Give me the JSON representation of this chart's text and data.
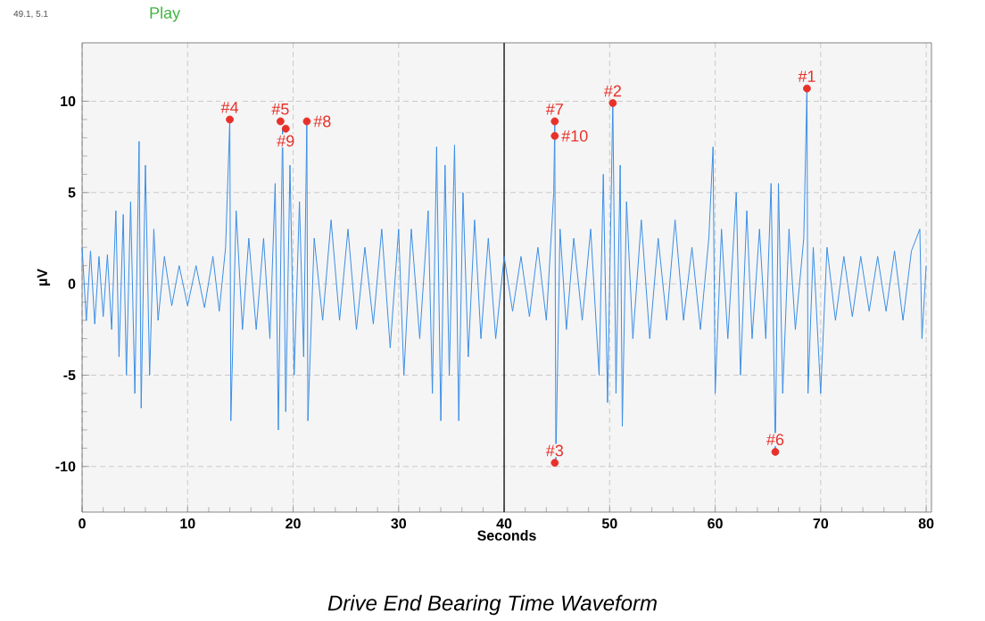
{
  "chart_data": {
    "type": "line",
    "title": "Drive End Bearing Time Waveform",
    "xlabel": "Seconds",
    "ylabel": "µV",
    "xlim": [
      0,
      80.5
    ],
    "ylim": [
      -12.5,
      13.2
    ],
    "xticks": [
      0,
      10,
      20,
      30,
      40,
      50,
      60,
      70,
      80
    ],
    "yticks": [
      -10,
      -5,
      0,
      5,
      10
    ],
    "grid": true,
    "ref_lines": [
      {
        "axis": "x",
        "value": 40,
        "color": "#333333"
      }
    ],
    "annotations": [
      "49.1, 5.1",
      "Play",
      {
        "text": "#1",
        "x": 68.7,
        "y": 10.7
      },
      {
        "text": "#2",
        "x": 50.3,
        "y": 9.9
      },
      {
        "text": "#3",
        "x": 44.8,
        "y": -9.8
      },
      {
        "text": "#4",
        "x": 14.0,
        "y": 9.0
      },
      {
        "text": "#5",
        "x": 18.8,
        "y": 8.9
      },
      {
        "text": "#6",
        "x": 65.7,
        "y": -9.2
      },
      {
        "text": "#7",
        "x": 44.8,
        "y": 8.9
      },
      {
        "text": "#8",
        "x": 21.3,
        "y": 8.9
      },
      {
        "text": "#9",
        "x": 19.3,
        "y": 8.5
      },
      {
        "text": "#10",
        "x": 44.8,
        "y": 8.1
      }
    ],
    "series": [
      {
        "color": "#3a8ee6",
        "marker": "none",
        "line_style": "solid",
        "x": [
          0,
          0.4,
          0.8,
          1.2,
          1.6,
          2,
          2.4,
          2.8,
          3.2,
          3.5,
          3.9,
          4.2,
          4.6,
          5,
          5.4,
          5.6,
          6,
          6.4,
          6.8,
          7.2,
          7.8,
          8.5,
          9.2,
          10,
          10.8,
          11.6,
          12.4,
          13,
          13.6,
          14,
          14.1,
          14.6,
          15.2,
          15.8,
          16.5,
          17.2,
          17.8,
          18.3,
          18.6,
          19,
          19.3,
          19.7,
          20.1,
          20.6,
          21,
          21.3,
          21.4,
          22,
          22.8,
          23.6,
          24.4,
          25.2,
          26,
          26.8,
          27.6,
          28.4,
          29.2,
          30,
          30.5,
          31.2,
          32,
          32.8,
          33.2,
          33.6,
          34,
          34.4,
          34.8,
          35.3,
          35.7,
          36.1,
          36.6,
          37.2,
          37.8,
          38.5,
          39.2,
          40,
          40.8,
          41.6,
          42.4,
          43.2,
          44,
          44.7,
          44.8,
          44.9,
          45.3,
          45.9,
          46.6,
          47.4,
          48.2,
          49,
          49.4,
          49.8,
          50.3,
          50.6,
          51,
          51.2,
          51.6,
          52.2,
          53,
          53.8,
          54.6,
          55.4,
          56.2,
          57,
          57.8,
          58.6,
          59.4,
          59.8,
          60,
          60.6,
          61.2,
          62,
          62.4,
          63,
          63.5,
          64.2,
          64.8,
          65.3,
          65.7,
          66,
          66.4,
          67,
          67.6,
          68.4,
          68.7,
          68.8,
          69.3,
          70,
          70.6,
          71.4,
          72.2,
          73,
          73.8,
          74.6,
          75.4,
          76.2,
          77,
          77.8,
          78.6,
          79.4,
          79.6,
          80
        ],
        "values": [
          2,
          -2,
          1.8,
          -2.2,
          1.5,
          -1.8,
          1.6,
          -2.5,
          4,
          -4,
          3.8,
          -5,
          4.5,
          -6,
          7.8,
          -6.8,
          6.5,
          -5,
          3,
          -2,
          1.5,
          -1.2,
          1,
          -1.2,
          1,
          -1.3,
          1.5,
          -1.5,
          2,
          9,
          -7.5,
          4,
          -2.5,
          2.5,
          -2.5,
          2.5,
          -3,
          5.5,
          -8,
          8.5,
          -7,
          6.5,
          -5,
          4.5,
          -4,
          8.9,
          -7.5,
          2.5,
          -2,
          3.5,
          -2,
          3,
          -2.5,
          2,
          -2.2,
          3,
          -3.5,
          3,
          -5,
          3,
          -3,
          4,
          -6,
          7.5,
          -7.5,
          6.5,
          -5,
          7.6,
          -7.5,
          5,
          -4,
          3.5,
          -3,
          2.5,
          -3,
          1.5,
          -1.5,
          1.5,
          -1.8,
          2,
          -2,
          5,
          8.9,
          -9.8,
          3,
          -2.5,
          2.5,
          -2,
          3,
          -5,
          6,
          -6.5,
          9.9,
          -6,
          6.5,
          -7.8,
          4.5,
          -3,
          3.5,
          -3,
          2.5,
          -2,
          3.5,
          -2,
          2,
          -2.5,
          2.5,
          7.5,
          -6,
          3,
          -3,
          5,
          -5,
          4,
          -3,
          3,
          -3,
          5.5,
          -9.2,
          5.5,
          -6,
          3,
          -2.5,
          2.5,
          10.7,
          -6,
          2,
          -6,
          2,
          -2,
          1.5,
          -1.8,
          1.5,
          -1.5,
          1.5,
          -1.5,
          1.8,
          -2,
          1.8,
          3,
          -3,
          1
        ]
      },
      {
        "type": "scatter",
        "color": "#e8302a",
        "marker": "circle",
        "x": [
          68.7,
          50.3,
          44.8,
          14.0,
          18.8,
          65.7,
          44.8,
          21.3,
          19.3,
          44.8
        ],
        "values": [
          10.7,
          9.9,
          -9.8,
          9.0,
          8.9,
          -9.2,
          8.9,
          8.9,
          8.5,
          8.1
        ]
      }
    ]
  }
}
